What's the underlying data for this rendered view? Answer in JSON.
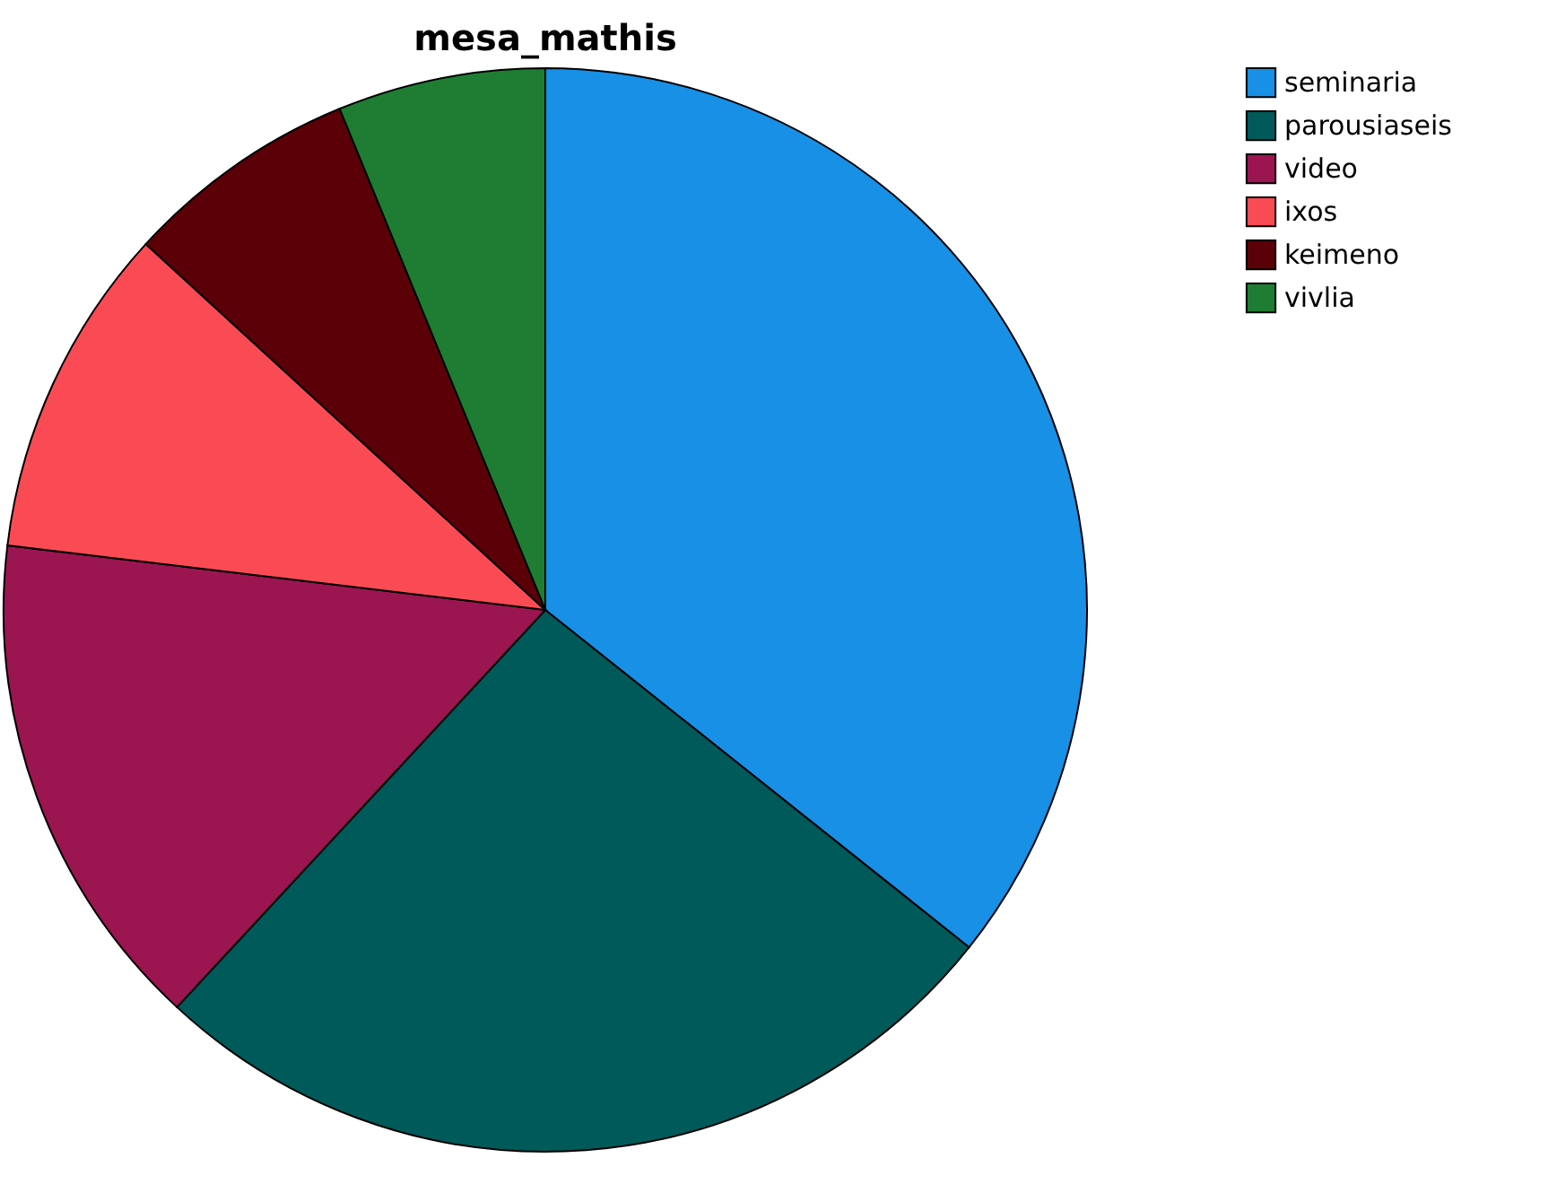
{
  "chart_data": {
    "type": "pie",
    "title": "mesa_mathis",
    "categories": [
      "seminaria",
      "parousiaseis",
      "video",
      "ixos",
      "keimeno",
      "vivlia"
    ],
    "values": [
      35.7,
      26.2,
      15.0,
      9.9,
      7.0,
      6.2
    ],
    "colors": [
      "#1790e6",
      "#005a5a",
      "#9b1550",
      "#fa4b55",
      "#5c0008",
      "#1e7d32"
    ],
    "legend": "top right"
  }
}
